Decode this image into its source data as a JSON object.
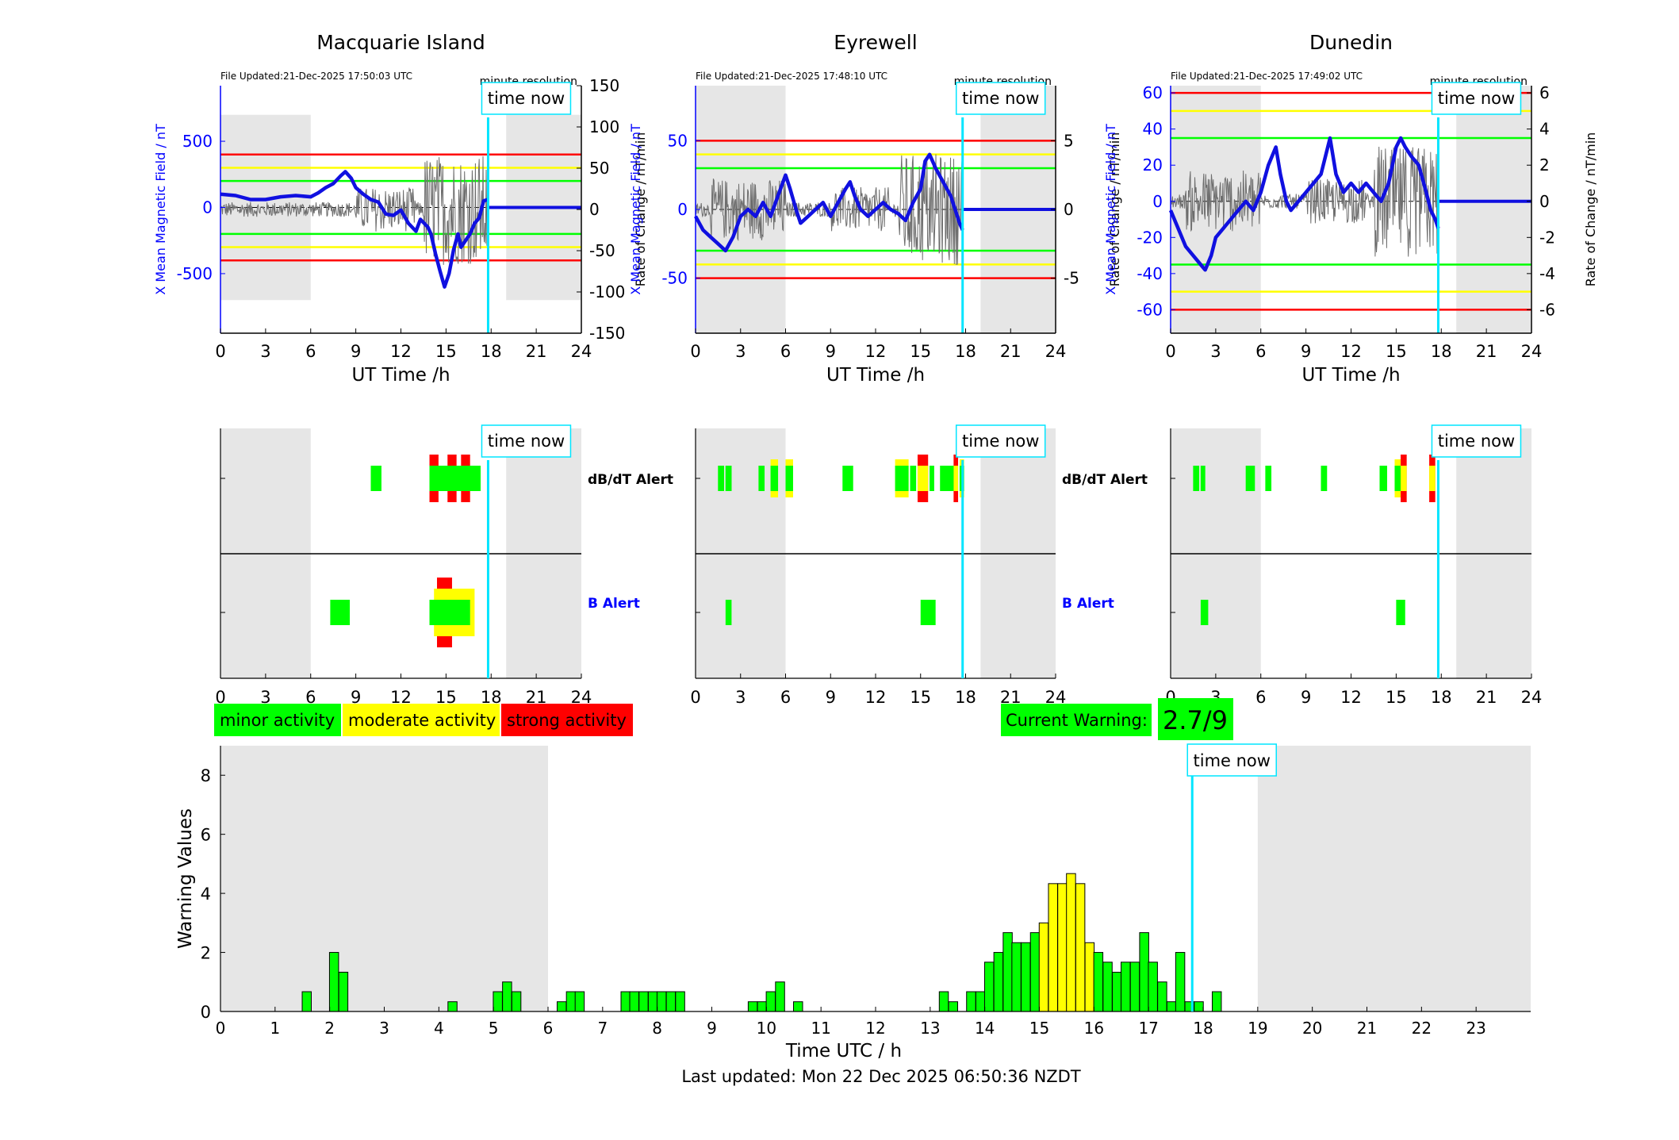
{
  "colors": {
    "blue": "#0000ff",
    "cyan": "#00e5ff",
    "green": "#00ff00",
    "yellow": "#ffff00",
    "red": "#ff0000",
    "shade": "#e6e6e6",
    "accent_line_blue": "#1010e0"
  },
  "time_now_label": "time now",
  "minute_resolution_label": "minute resolution",
  "time_now_hour": 17.8,
  "night_shading": [
    [
      0,
      6
    ],
    [
      19,
      24
    ]
  ],
  "stations": [
    {
      "name": "Macquarie Island",
      "file_updated": "File Updated:21-Dec-2025 17:50:03 UTC",
      "left_ylabel": "X Mean Magnetic Field / nT",
      "right_ylabel": "Rate of Change / nT/min",
      "xlabel": "UT Time /h",
      "ylim": [
        -950,
        920
      ],
      "yticks": [
        "500",
        "0",
        "-500"
      ],
      "ytick_values": [
        500,
        0,
        -500
      ],
      "y2lim": [
        -150,
        150
      ],
      "y2ticks": [
        "150",
        "100",
        "50",
        "0",
        "-50",
        "-100",
        "-150"
      ],
      "y2tick_values": [
        150,
        100,
        50,
        0,
        -50,
        -100,
        -150
      ],
      "threshold_lines": {
        "red": [
          400,
          -400
        ],
        "yellow": [
          300,
          -300
        ],
        "green": [
          200,
          -200
        ]
      },
      "shading_ylim": [
        -700,
        700
      ],
      "mean_field_series": [
        [
          0,
          100
        ],
        [
          1,
          90
        ],
        [
          2,
          60
        ],
        [
          3,
          60
        ],
        [
          4,
          80
        ],
        [
          5,
          90
        ],
        [
          6,
          80
        ],
        [
          6.5,
          110
        ],
        [
          7,
          150
        ],
        [
          7.5,
          180
        ],
        [
          8,
          240
        ],
        [
          8.3,
          270
        ],
        [
          8.7,
          220
        ],
        [
          9,
          150
        ],
        [
          9.5,
          100
        ],
        [
          10,
          60
        ],
        [
          10.5,
          40
        ],
        [
          11,
          -50
        ],
        [
          11.5,
          -60
        ],
        [
          12,
          -20
        ],
        [
          12.5,
          -120
        ],
        [
          13,
          -180
        ],
        [
          13.3,
          -90
        ],
        [
          13.8,
          -150
        ],
        [
          14,
          -200
        ],
        [
          14.3,
          -350
        ],
        [
          14.6,
          -480
        ],
        [
          14.9,
          -600
        ],
        [
          15.2,
          -500
        ],
        [
          15.5,
          -320
        ],
        [
          15.8,
          -200
        ],
        [
          16,
          -300
        ],
        [
          16.3,
          -250
        ],
        [
          16.6,
          -200
        ],
        [
          16.9,
          -120
        ],
        [
          17.2,
          -80
        ],
        [
          17.5,
          50
        ],
        [
          17.8,
          60
        ]
      ],
      "mean_field_future": [
        [
          17.8,
          0
        ],
        [
          24,
          0
        ]
      ],
      "dbdt_alert": [
        {
          "from": 10.0,
          "to": 10.7,
          "level": "green"
        },
        {
          "from": 13.9,
          "to": 14.5,
          "level": "red"
        },
        {
          "from": 15.1,
          "to": 15.7,
          "level": "red"
        },
        {
          "from": 16.0,
          "to": 16.6,
          "level": "red"
        },
        {
          "from": 13.9,
          "to": 17.3,
          "level": "green"
        }
      ],
      "b_alert": [
        {
          "from": 7.3,
          "to": 8.6,
          "level": "green"
        },
        {
          "from": 14.4,
          "to": 15.4,
          "level": "red"
        },
        {
          "from": 14.2,
          "to": 16.9,
          "level": "yellow"
        },
        {
          "from": 13.9,
          "to": 16.6,
          "level": "green"
        }
      ]
    },
    {
      "name": "Eyrewell",
      "file_updated": "File Updated:21-Dec-2025 17:48:10 UTC",
      "left_ylabel": "X Mean Magnetic Field / nT",
      "right_ylabel": "Rate of Change / nT/min",
      "xlabel": "UT Time /h",
      "ylim": [
        -90,
        90
      ],
      "yticks": [
        "50",
        "0",
        "-50"
      ],
      "ytick_values": [
        50,
        0,
        -50
      ],
      "y2lim": [
        -9,
        9
      ],
      "y2ticks": [
        "5",
        "0",
        "-5"
      ],
      "y2tick_values": [
        5,
        0,
        -5
      ],
      "threshold_lines": {
        "red": [
          50,
          -50
        ],
        "yellow": [
          40,
          -40
        ],
        "green": [
          30,
          -30
        ]
      },
      "shading_ylim": [
        -90,
        90
      ],
      "mean_field_series": [
        [
          0,
          -5
        ],
        [
          0.5,
          -15
        ],
        [
          1,
          -20
        ],
        [
          1.5,
          -25
        ],
        [
          2,
          -30
        ],
        [
          2.5,
          -20
        ],
        [
          3,
          -5
        ],
        [
          3.5,
          0
        ],
        [
          4,
          -5
        ],
        [
          4.5,
          5
        ],
        [
          5,
          -5
        ],
        [
          5.5,
          10
        ],
        [
          6,
          25
        ],
        [
          6.3,
          15
        ],
        [
          6.7,
          0
        ],
        [
          7,
          -10
        ],
        [
          7.5,
          -5
        ],
        [
          8,
          0
        ],
        [
          8.5,
          5
        ],
        [
          9,
          -5
        ],
        [
          9.5,
          5
        ],
        [
          10,
          15
        ],
        [
          10.3,
          20
        ],
        [
          10.6,
          10
        ],
        [
          11,
          0
        ],
        [
          11.5,
          -5
        ],
        [
          12,
          0
        ],
        [
          12.5,
          5
        ],
        [
          13,
          0
        ],
        [
          13.5,
          -3
        ],
        [
          14,
          -8
        ],
        [
          14.5,
          5
        ],
        [
          15,
          15
        ],
        [
          15.3,
          35
        ],
        [
          15.6,
          40
        ],
        [
          16,
          30
        ],
        [
          16.5,
          20
        ],
        [
          17,
          10
        ],
        [
          17.3,
          0
        ],
        [
          17.6,
          -10
        ],
        [
          17.8,
          -15
        ]
      ],
      "mean_field_future": [
        [
          17.8,
          0
        ],
        [
          24,
          0
        ]
      ],
      "dbdt_alert": [
        {
          "from": 1.5,
          "to": 1.9,
          "level": "green"
        },
        {
          "from": 2.0,
          "to": 2.4,
          "level": "green"
        },
        {
          "from": 4.2,
          "to": 4.6,
          "level": "green"
        },
        {
          "from": 5.0,
          "to": 5.5,
          "level": "yellow"
        },
        {
          "from": 6.0,
          "to": 6.5,
          "level": "yellow"
        },
        {
          "from": 9.8,
          "to": 10.5,
          "level": "green"
        },
        {
          "from": 13.3,
          "to": 14.2,
          "level": "yellow"
        },
        {
          "from": 14.3,
          "to": 14.7,
          "level": "green"
        },
        {
          "from": 14.8,
          "to": 15.5,
          "level": "red"
        },
        {
          "from": 15.6,
          "to": 15.9,
          "level": "green"
        },
        {
          "from": 16.3,
          "to": 17.2,
          "level": "green"
        },
        {
          "from": 17.2,
          "to": 17.5,
          "level": "red"
        },
        {
          "from": 17.6,
          "to": 17.9,
          "level": "yellow"
        }
      ],
      "b_alert": [
        {
          "from": 2.0,
          "to": 2.4,
          "level": "green"
        },
        {
          "from": 15.0,
          "to": 16.0,
          "level": "green"
        }
      ]
    },
    {
      "name": "Dunedin",
      "file_updated": "File Updated:21-Dec-2025 17:49:02 UTC",
      "left_ylabel": "X Mean Magnetic Field / nT",
      "right_ylabel": "Rate of Change / nT/min",
      "xlabel": "UT Time /h",
      "ylim": [
        -73,
        64
      ],
      "yticks": [
        "60",
        "40",
        "20",
        "0",
        "-20",
        "-40",
        "-60"
      ],
      "ytick_values": [
        60,
        40,
        20,
        0,
        -20,
        -40,
        -60
      ],
      "y2lim": [
        -7.3,
        6.4
      ],
      "y2ticks": [
        "6",
        "4",
        "2",
        "0",
        "-2",
        "-4",
        "-6"
      ],
      "y2tick_values": [
        6,
        4,
        2,
        0,
        -2,
        -4,
        -6
      ],
      "threshold_lines": {
        "red": [
          60,
          -60
        ],
        "yellow": [
          50,
          -50
        ],
        "green": [
          35,
          -35
        ]
      },
      "shading_ylim": [
        -73,
        64
      ],
      "mean_field_series": [
        [
          0,
          -5
        ],
        [
          0.5,
          -15
        ],
        [
          1,
          -25
        ],
        [
          1.5,
          -30
        ],
        [
          2,
          -35
        ],
        [
          2.3,
          -38
        ],
        [
          2.7,
          -30
        ],
        [
          3,
          -20
        ],
        [
          3.5,
          -15
        ],
        [
          4,
          -10
        ],
        [
          4.5,
          -5
        ],
        [
          5,
          0
        ],
        [
          5.5,
          -5
        ],
        [
          6,
          5
        ],
        [
          6.5,
          20
        ],
        [
          7,
          30
        ],
        [
          7.3,
          15
        ],
        [
          7.7,
          0
        ],
        [
          8,
          -5
        ],
        [
          8.5,
          0
        ],
        [
          9,
          5
        ],
        [
          9.5,
          10
        ],
        [
          10,
          15
        ],
        [
          10.3,
          25
        ],
        [
          10.6,
          35
        ],
        [
          11,
          15
        ],
        [
          11.5,
          5
        ],
        [
          12,
          10
        ],
        [
          12.5,
          5
        ],
        [
          13,
          10
        ],
        [
          13.5,
          5
        ],
        [
          14,
          0
        ],
        [
          14.5,
          10
        ],
        [
          15,
          30
        ],
        [
          15.3,
          35
        ],
        [
          15.6,
          30
        ],
        [
          16,
          25
        ],
        [
          16.5,
          20
        ],
        [
          17,
          5
        ],
        [
          17.3,
          -5
        ],
        [
          17.6,
          -10
        ],
        [
          17.8,
          -15
        ]
      ],
      "mean_field_future": [
        [
          17.8,
          0
        ],
        [
          24,
          0
        ]
      ],
      "dbdt_alert": [
        {
          "from": 1.5,
          "to": 1.9,
          "level": "green"
        },
        {
          "from": 2.0,
          "to": 2.3,
          "level": "green"
        },
        {
          "from": 5.0,
          "to": 5.6,
          "level": "green"
        },
        {
          "from": 6.3,
          "to": 6.7,
          "level": "green"
        },
        {
          "from": 10.0,
          "to": 10.4,
          "level": "green"
        },
        {
          "from": 13.9,
          "to": 14.4,
          "level": "green"
        },
        {
          "from": 14.9,
          "to": 15.3,
          "level": "yellow"
        },
        {
          "from": 15.3,
          "to": 15.7,
          "level": "red"
        },
        {
          "from": 17.2,
          "to": 17.6,
          "level": "red"
        }
      ],
      "b_alert": [
        {
          "from": 2.0,
          "to": 2.5,
          "level": "green"
        },
        {
          "from": 15.0,
          "to": 15.6,
          "level": "green"
        }
      ]
    }
  ],
  "alert_labels": {
    "dbdt": "dB/dT Alert",
    "b": "B Alert"
  },
  "hour_ticks_6h": [
    "0",
    "3",
    "6",
    "9",
    "12",
    "15",
    "18",
    "21",
    "24"
  ],
  "legend": [
    {
      "label": "minor activity",
      "color": "#00ff00"
    },
    {
      "label": "moderate activity",
      "color": "#ffff00"
    },
    {
      "label": "strong activity",
      "color": "#ff0000"
    }
  ],
  "current_warning": {
    "label": "Current Warning:",
    "value": "2.7/9"
  },
  "chart_data": {
    "type": "bar",
    "title": "",
    "xlabel": "Time UTC / h",
    "ylabel": "Warning Values",
    "xlim": [
      0,
      24
    ],
    "ylim": [
      0,
      9
    ],
    "yticks": [
      "0",
      "2",
      "4",
      "6",
      "8"
    ],
    "xticks": [
      "0",
      "1",
      "2",
      "3",
      "4",
      "5",
      "6",
      "7",
      "8",
      "9",
      "10",
      "11",
      "12",
      "13",
      "14",
      "15",
      "16",
      "17",
      "18",
      "19",
      "20",
      "21",
      "22",
      "23"
    ],
    "bar_width_h": 0.1667,
    "bars": [
      {
        "x": 1.58,
        "y": 0.67,
        "level": "green"
      },
      {
        "x": 2.08,
        "y": 2.0,
        "level": "green"
      },
      {
        "x": 2.25,
        "y": 1.33,
        "level": "green"
      },
      {
        "x": 4.25,
        "y": 0.33,
        "level": "green"
      },
      {
        "x": 5.08,
        "y": 0.67,
        "level": "green"
      },
      {
        "x": 5.25,
        "y": 1.0,
        "level": "green"
      },
      {
        "x": 5.42,
        "y": 0.67,
        "level": "green"
      },
      {
        "x": 6.25,
        "y": 0.33,
        "level": "green"
      },
      {
        "x": 6.42,
        "y": 0.67,
        "level": "green"
      },
      {
        "x": 6.58,
        "y": 0.67,
        "level": "green"
      },
      {
        "x": 7.42,
        "y": 0.67,
        "level": "green"
      },
      {
        "x": 7.58,
        "y": 0.67,
        "level": "green"
      },
      {
        "x": 7.75,
        "y": 0.67,
        "level": "green"
      },
      {
        "x": 7.92,
        "y": 0.67,
        "level": "green"
      },
      {
        "x": 8.08,
        "y": 0.67,
        "level": "green"
      },
      {
        "x": 8.25,
        "y": 0.67,
        "level": "green"
      },
      {
        "x": 8.42,
        "y": 0.67,
        "level": "green"
      },
      {
        "x": 9.75,
        "y": 0.33,
        "level": "green"
      },
      {
        "x": 9.92,
        "y": 0.33,
        "level": "green"
      },
      {
        "x": 10.08,
        "y": 0.67,
        "level": "green"
      },
      {
        "x": 10.25,
        "y": 1.0,
        "level": "green"
      },
      {
        "x": 10.58,
        "y": 0.33,
        "level": "green"
      },
      {
        "x": 13.25,
        "y": 0.67,
        "level": "green"
      },
      {
        "x": 13.42,
        "y": 0.33,
        "level": "green"
      },
      {
        "x": 13.75,
        "y": 0.67,
        "level": "green"
      },
      {
        "x": 13.92,
        "y": 0.67,
        "level": "green"
      },
      {
        "x": 14.08,
        "y": 1.67,
        "level": "green"
      },
      {
        "x": 14.25,
        "y": 2.0,
        "level": "green"
      },
      {
        "x": 14.42,
        "y": 2.67,
        "level": "green"
      },
      {
        "x": 14.58,
        "y": 2.33,
        "level": "green"
      },
      {
        "x": 14.75,
        "y": 2.33,
        "level": "green"
      },
      {
        "x": 14.92,
        "y": 2.67,
        "level": "green"
      },
      {
        "x": 15.08,
        "y": 3.0,
        "level": "yellow"
      },
      {
        "x": 15.25,
        "y": 4.33,
        "level": "yellow"
      },
      {
        "x": 15.42,
        "y": 4.33,
        "level": "yellow"
      },
      {
        "x": 15.58,
        "y": 4.67,
        "level": "yellow"
      },
      {
        "x": 15.75,
        "y": 4.33,
        "level": "yellow"
      },
      {
        "x": 15.92,
        "y": 2.33,
        "level": "yellow"
      },
      {
        "x": 16.08,
        "y": 2.0,
        "level": "green"
      },
      {
        "x": 16.25,
        "y": 1.67,
        "level": "green"
      },
      {
        "x": 16.42,
        "y": 1.33,
        "level": "green"
      },
      {
        "x": 16.58,
        "y": 1.67,
        "level": "green"
      },
      {
        "x": 16.75,
        "y": 1.67,
        "level": "green"
      },
      {
        "x": 16.92,
        "y": 2.67,
        "level": "green"
      },
      {
        "x": 17.08,
        "y": 1.67,
        "level": "green"
      },
      {
        "x": 17.25,
        "y": 1.0,
        "level": "green"
      },
      {
        "x": 17.42,
        "y": 0.33,
        "level": "green"
      },
      {
        "x": 17.58,
        "y": 2.0,
        "level": "green"
      },
      {
        "x": 17.75,
        "y": 0.33,
        "level": "green"
      },
      {
        "x": 17.92,
        "y": 0.33,
        "level": "green"
      },
      {
        "x": 18.25,
        "y": 0.67,
        "level": "green"
      }
    ],
    "night_shading": [
      [
        0,
        6
      ],
      [
        19,
        24
      ]
    ],
    "grid": false,
    "legend": "none"
  },
  "footer": "Last updated: Mon 22 Dec 2025 06:50:36 NZDT"
}
